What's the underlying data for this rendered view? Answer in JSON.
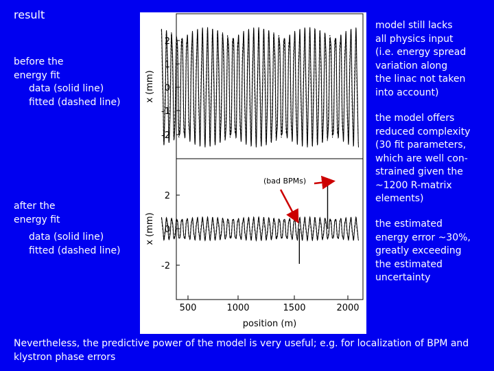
{
  "title": "result",
  "left": {
    "before": {
      "heading": [
        "before the",
        "energy fit"
      ],
      "data_line": "data (solid line)",
      "fitted_line": "fitted (dashed line)"
    },
    "after": {
      "heading": [
        "after the",
        "energy fit"
      ],
      "data_line": "data (solid line)",
      "fitted_line": "fitted (dashed line)"
    }
  },
  "right": {
    "para1": [
      "model still lacks",
      "all physics input",
      "(i.e. energy spread",
      "variation along",
      "the linac not taken",
      "into account)"
    ],
    "para2": [
      "the model offers",
      "reduced complexity",
      "(30 fit parameters,",
      "which are well con-",
      "strained given the",
      "~1200 R-matrix",
      "elements)"
    ],
    "para3": [
      "the estimated",
      "energy error ~30%,",
      "greatly exceeding",
      "the estimated",
      "uncertainty"
    ]
  },
  "footer": "Nevertheless, the predictive power of the model is very useful; e.g. for  localization of BPM and klystron phase errors",
  "figure": {
    "annotation": "(bad BPMs)",
    "xlabel": "position (m)",
    "top_ylabel": "x (mm)",
    "bottom_ylabel": "x (mm)",
    "top_yticks": [
      "2",
      "1",
      "0",
      "-1",
      "-2"
    ],
    "bottom_yticks": [
      "2",
      "0",
      "-2"
    ],
    "xticks": [
      "500",
      "1000",
      "1500",
      "2000"
    ]
  },
  "chart_data": [
    {
      "type": "line",
      "panel": "before the energy fit",
      "ylabel": "x (mm)",
      "xlim": [
        250,
        2100
      ],
      "ylim": [
        -2.6,
        2.7
      ],
      "grid": false,
      "series": [
        {
          "name": "data (solid line)",
          "style": "solid",
          "amplitude": 2.3,
          "oscillation_period_m": 48
        },
        {
          "name": "fitted (dashed line)",
          "style": "dashed",
          "amplitude": 2.2,
          "oscillation_period_m": 48
        }
      ]
    },
    {
      "type": "line",
      "panel": "after the energy fit",
      "xlabel": "position (m)",
      "ylabel": "x (mm)",
      "xlim": [
        250,
        2100
      ],
      "ylim": [
        -3.3,
        3.3
      ],
      "grid": false,
      "series": [
        {
          "name": "data (solid line)",
          "style": "solid",
          "amplitude": 0.6,
          "oscillation_period_m": 48
        },
        {
          "name": "fitted (dashed line)",
          "style": "dashed",
          "amplitude": 0.55,
          "oscillation_period_m": 48
        }
      ],
      "outliers": [
        {
          "x": 1545,
          "y": -2.0
        },
        {
          "x": 1810,
          "y": 2.6
        }
      ]
    }
  ]
}
